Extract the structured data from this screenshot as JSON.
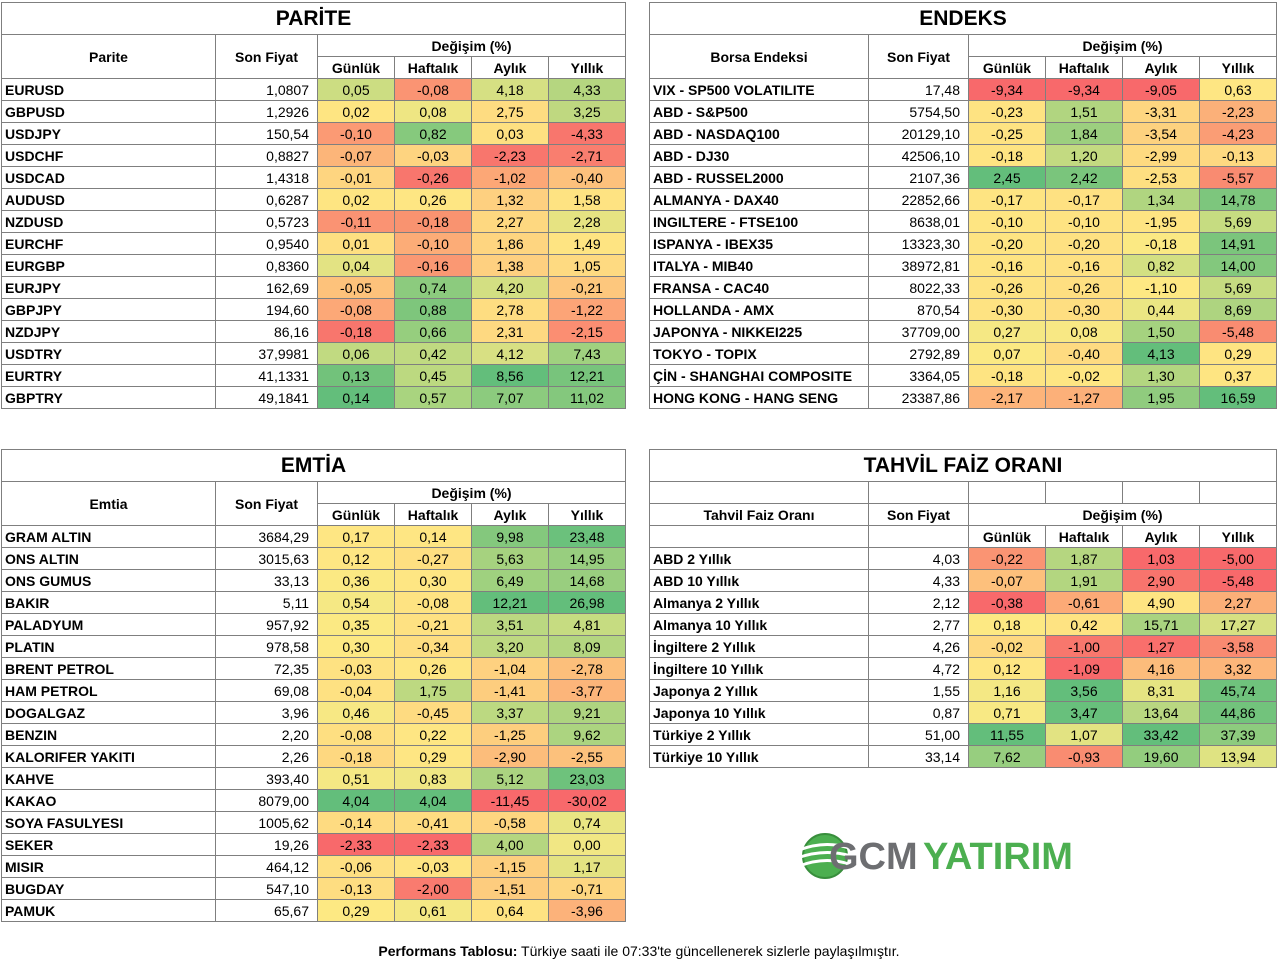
{
  "parite": {
    "title": "PARİTE",
    "col_name": "Parite",
    "col_price": "Son Fiyat",
    "col_change": "Değişim (%)",
    "sub": [
      "Günlük",
      "Haftalık",
      "Aylık",
      "Yıllık"
    ],
    "rows": [
      {
        "name": "EURUSD",
        "price": "1,0807",
        "d": "0,05",
        "w": "-0,08",
        "m": "4,18",
        "y": "4,33",
        "c": [
          "#ccdd82",
          "#fa9473",
          "#d6e083",
          "#b5d680"
        ]
      },
      {
        "name": "GBPUSD",
        "price": "1,2926",
        "d": "0,02",
        "w": "0,08",
        "m": "2,75",
        "y": "3,25",
        "c": [
          "#fee582",
          "#eee683",
          "#fedc81",
          "#bfd880"
        ]
      },
      {
        "name": "USDJPY",
        "price": "150,54",
        "d": "-0,10",
        "w": "0,82",
        "m": "0,03",
        "y": "-4,33",
        "c": [
          "#fb9a74",
          "#86c97d",
          "#fee081",
          "#f8766d"
        ]
      },
      {
        "name": "USDCHF",
        "price": "0,8827",
        "d": "-0,07",
        "w": "-0,03",
        "m": "-2,23",
        "y": "-2,71",
        "c": [
          "#fcb579",
          "#fed480",
          "#f8766d",
          "#f97e6f"
        ]
      },
      {
        "name": "USDCAD",
        "price": "1,4318",
        "d": "-0,01",
        "w": "-0,26",
        "m": "-1,02",
        "y": "-0,40",
        "c": [
          "#fed580",
          "#f8766d",
          "#fca776",
          "#fdc17c"
        ]
      },
      {
        "name": "AUDUSD",
        "price": "0,6287",
        "d": "0,02",
        "w": "0,26",
        "m": "1,32",
        "y": "1,58",
        "c": [
          "#fee582",
          "#fee683",
          "#fed080",
          "#fee382"
        ]
      },
      {
        "name": "NZDUSD",
        "price": "0,5723",
        "d": "-0,11",
        "w": "-0,18",
        "m": "2,27",
        "y": "2,28",
        "c": [
          "#fa9373",
          "#f99370",
          "#fed880",
          "#e6e382"
        ]
      },
      {
        "name": "EURCHF",
        "price": "0,9540",
        "d": "0,01",
        "w": "-0,10",
        "m": "1,86",
        "y": "1,49",
        "c": [
          "#fedf81",
          "#fcac77",
          "#fed580",
          "#fee482"
        ]
      },
      {
        "name": "EURGBP",
        "price": "0,8360",
        "d": "0,04",
        "w": "-0,16",
        "m": "1,38",
        "y": "1,05",
        "c": [
          "#e3e383",
          "#fa9873",
          "#fed080",
          "#feda81"
        ]
      },
      {
        "name": "EURJPY",
        "price": "162,69",
        "d": "-0,05",
        "w": "0,74",
        "m": "4,20",
        "y": "-0,21",
        "c": [
          "#fdc27b",
          "#8ccb7e",
          "#d3df82",
          "#fdc77d"
        ]
      },
      {
        "name": "GBPJPY",
        "price": "194,60",
        "d": "-0,08",
        "w": "0,88",
        "m": "2,78",
        "y": "-1,22",
        "c": [
          "#fca877",
          "#7ec67c",
          "#fedd81",
          "#fca477"
        ]
      },
      {
        "name": "NZDJPY",
        "price": "86,16",
        "d": "-0,18",
        "w": "0,66",
        "m": "2,31",
        "y": "-2,15",
        "c": [
          "#f8766d",
          "#96ce7e",
          "#fed981",
          "#fb8e72"
        ]
      },
      {
        "name": "USDTRY",
        "price": "37,9981",
        "d": "0,06",
        "w": "0,42",
        "m": "4,12",
        "y": "7,43",
        "c": [
          "#c1da81",
          "#c0da81",
          "#d8e083",
          "#a0d17f"
        ]
      },
      {
        "name": "EURTRY",
        "price": "41,1331",
        "d": "0,13",
        "w": "0,45",
        "m": "8,56",
        "y": "12,21",
        "c": [
          "#72c27b",
          "#bcd980",
          "#63be7b",
          "#78c47c"
        ]
      },
      {
        "name": "GBPTRY",
        "price": "49,1841",
        "d": "0,14",
        "w": "0,57",
        "m": "7,07",
        "y": "11,02",
        "c": [
          "#63be7b",
          "#a9d47f",
          "#8ccb7e",
          "#84c87d"
        ]
      }
    ]
  },
  "endeks": {
    "title": "ENDEKS",
    "col_name": "Borsa Endeksi",
    "col_price": "Son Fiyat",
    "col_change": "Değişim (%)",
    "sub": [
      "Günlük",
      "Haftalık",
      "Aylık",
      "Yıllık"
    ],
    "rows": [
      {
        "name": "VIX  - SP500 VOLATILITE",
        "price": "17,48",
        "d": "-9,34",
        "w": "-9,34",
        "m": "-9,05",
        "y": "0,63",
        "c": [
          "#f8696b",
          "#f8696b",
          "#f8696b",
          "#fee683"
        ]
      },
      {
        "name": "ABD - S&P500",
        "price": "5754,50",
        "d": "-0,23",
        "w": "1,51",
        "m": "-3,31",
        "y": "-2,23",
        "c": [
          "#fee382",
          "#b1d580",
          "#fed680",
          "#fbb079"
        ]
      },
      {
        "name": "ABD - NASDAQ100",
        "price": "20129,10",
        "d": "-0,25",
        "w": "1,84",
        "m": "-3,54",
        "y": "-4,23",
        "c": [
          "#fee382",
          "#9ccf7f",
          "#fdd27f",
          "#fa9d75"
        ]
      },
      {
        "name": "ABD - DJ30",
        "price": "42506,10",
        "d": "-0,18",
        "w": "1,20",
        "m": "-2,99",
        "y": "-0,13",
        "c": [
          "#fee482",
          "#c3da81",
          "#feda80",
          "#fed981"
        ]
      },
      {
        "name": "ABD - RUSSEL2000",
        "price": "2107,36",
        "d": "2,45",
        "w": "2,42",
        "m": "-2,53",
        "y": "-5,57",
        "c": [
          "#63be7b",
          "#7ac57c",
          "#fedf81",
          "#f98b71"
        ]
      },
      {
        "name": "ALMANYA - DAX40",
        "price": "22852,66",
        "d": "-0,17",
        "w": "-0,17",
        "m": "1,34",
        "y": "14,78",
        "c": [
          "#fee482",
          "#fee182",
          "#b0d580",
          "#7dc67d"
        ]
      },
      {
        "name": "INGILTERE - FTSE100",
        "price": "8638,01",
        "d": "-0,10",
        "w": "-0,10",
        "m": "-1,95",
        "y": "5,69",
        "c": [
          "#fee582",
          "#fee382",
          "#fee482",
          "#c6dc81"
        ]
      },
      {
        "name": "ISPANYA - IBEX35",
        "price": "13323,30",
        "d": "-0,20",
        "w": "-0,20",
        "m": "-0,18",
        "y": "14,91",
        "c": [
          "#fee482",
          "#fee182",
          "#fbe983",
          "#7bc57c"
        ]
      },
      {
        "name": "ITALYA - MIB40",
        "price": "38972,81",
        "d": "-0,16",
        "w": "-0,16",
        "m": "0,82",
        "y": "14,00",
        "c": [
          "#fee482",
          "#fee182",
          "#d3e082",
          "#83c87d"
        ]
      },
      {
        "name": "FRANSA - CAC40",
        "price": "8022,33",
        "d": "-0,26",
        "w": "-0,26",
        "m": "-1,10",
        "y": "5,69",
        "c": [
          "#fee382",
          "#fedf81",
          "#fee883",
          "#c6dc81"
        ]
      },
      {
        "name": "HOLLANDA - AMX",
        "price": "870,54",
        "d": "-0,30",
        "w": "-0,30",
        "m": "0,44",
        "y": "8,69",
        "c": [
          "#fee382",
          "#fede81",
          "#ebe683",
          "#aed480"
        ]
      },
      {
        "name": "JAPONYA - NIKKEI225",
        "price": "37709,00",
        "d": "0,27",
        "w": "0,08",
        "m": "1,50",
        "y": "-5,48",
        "c": [
          "#f5e884",
          "#f8e884",
          "#a5d27f",
          "#f98c71"
        ]
      },
      {
        "name": "TOKYO - TOPIX",
        "price": "2792,89",
        "d": "0,07",
        "w": "-0,40",
        "m": "4,13",
        "y": "0,29",
        "c": [
          "#fbe983",
          "#fedb81",
          "#63be7b",
          "#fee482"
        ]
      },
      {
        "name": "ÇİN - SHANGHAI COMPOSITE",
        "price": "3364,05",
        "d": "-0,18",
        "w": "-0,02",
        "m": "1,30",
        "y": "0,37",
        "c": [
          "#fee482",
          "#fee683",
          "#b3d680",
          "#fee582"
        ]
      },
      {
        "name": "HONG KONG - HANG SENG",
        "price": "23387,86",
        "d": "-2,17",
        "w": "-1,27",
        "m": "1,95",
        "y": "16,59",
        "c": [
          "#fdb47a",
          "#fcb079",
          "#90cb7e",
          "#63be7b"
        ]
      }
    ]
  },
  "emtia": {
    "title": "EMTİA",
    "col_name": "Emtia",
    "col_price": "Son Fiyat",
    "col_change": "Değişim (%)",
    "sub": [
      "Günlük",
      "Haftalık",
      "Aylık",
      "Yıllık"
    ],
    "rows": [
      {
        "name": "GRAM ALTIN",
        "price": "3684,29",
        "d": "0,17",
        "w": "0,14",
        "m": "9,98",
        "y": "23,48",
        "c": [
          "#fee683",
          "#fee683",
          "#84c87d",
          "#6bc17c"
        ]
      },
      {
        "name": "ONS ALTIN",
        "price": "3015,63",
        "d": "0,12",
        "w": "-0,27",
        "m": "5,63",
        "y": "14,95",
        "c": [
          "#fee683",
          "#fedf81",
          "#a6d27f",
          "#98ce7f"
        ]
      },
      {
        "name": "ONS GUMUS",
        "price": "33,13",
        "d": "0,36",
        "w": "0,30",
        "m": "6,49",
        "y": "14,68",
        "c": [
          "#fbe983",
          "#fee683",
          "#9fd17f",
          "#99ce7f"
        ]
      },
      {
        "name": "BAKIR",
        "price": "5,11",
        "d": "0,54",
        "w": "-0,08",
        "m": "12,21",
        "y": "26,98",
        "c": [
          "#f5e884",
          "#fee382",
          "#63be7b",
          "#63be7b"
        ]
      },
      {
        "name": "PALADYUM",
        "price": "957,92",
        "d": "0,35",
        "w": "-0,21",
        "m": "3,51",
        "y": "4,81",
        "c": [
          "#fbe983",
          "#fee182",
          "#bbd881",
          "#c6dc81"
        ]
      },
      {
        "name": "PLATIN",
        "price": "978,58",
        "d": "0,30",
        "w": "-0,34",
        "m": "3,20",
        "y": "8,09",
        "c": [
          "#fde983",
          "#fede81",
          "#bed981",
          "#b4d680"
        ]
      },
      {
        "name": "BRENT PETROL",
        "price": "72,35",
        "d": "-0,03",
        "w": "0,26",
        "m": "-1,04",
        "y": "-2,78",
        "c": [
          "#fee282",
          "#fee683",
          "#fed180",
          "#fcbf7b"
        ]
      },
      {
        "name": "HAM PETROL",
        "price": "69,08",
        "d": "-0,04",
        "w": "1,75",
        "m": "-1,41",
        "y": "-3,77",
        "c": [
          "#fee182",
          "#bdd981",
          "#fdcd7e",
          "#fcb57a"
        ]
      },
      {
        "name": "DOGALGAZ",
        "price": "3,96",
        "d": "0,46",
        "w": "-0,45",
        "m": "3,37",
        "y": "9,21",
        "c": [
          "#f7e884",
          "#fedb81",
          "#bcd981",
          "#aed480"
        ]
      },
      {
        "name": "BENZIN",
        "price": "2,20",
        "d": "-0,08",
        "w": "0,22",
        "m": "-1,25",
        "y": "9,62",
        "c": [
          "#fedf81",
          "#fee683",
          "#fdce7e",
          "#acd480"
        ]
      },
      {
        "name": "KALORIFER YAKITI",
        "price": "2,26",
        "d": "-0,18",
        "w": "0,29",
        "m": "-2,90",
        "y": "-2,55",
        "c": [
          "#fed880",
          "#fee683",
          "#fcbd7b",
          "#fcc17c"
        ]
      },
      {
        "name": "KAHVE",
        "price": "393,40",
        "d": "0,51",
        "w": "0,83",
        "m": "5,12",
        "y": "23,03",
        "c": [
          "#f5e884",
          "#f0e784",
          "#abd380",
          "#6ec27c"
        ]
      },
      {
        "name": "KAKAO",
        "price": "8079,00",
        "d": "4,04",
        "w": "4,04",
        "m": "-11,45",
        "y": "-30,02",
        "c": [
          "#63be7b",
          "#63be7b",
          "#f8696b",
          "#f8696b"
        ]
      },
      {
        "name": "SOYA FASULYESI",
        "price": "1005,62",
        "d": "-0,14",
        "w": "-0,41",
        "m": "-0,58",
        "y": "0,74",
        "c": [
          "#fedb81",
          "#fedc81",
          "#fed580",
          "#e9e583"
        ]
      },
      {
        "name": "SEKER",
        "price": "19,26",
        "d": "-2,33",
        "w": "-2,33",
        "m": "4,00",
        "y": "0,00",
        "c": [
          "#f8696b",
          "#f8696b",
          "#b5d680",
          "#f1e784"
        ]
      },
      {
        "name": "MISIR",
        "price": "464,12",
        "d": "-0,06",
        "w": "-0,03",
        "m": "-1,15",
        "y": "1,17",
        "c": [
          "#fee082",
          "#fee482",
          "#fdcf7e",
          "#e4e382"
        ]
      },
      {
        "name": "BUGDAY",
        "price": "547,10",
        "d": "-0,13",
        "w": "-2,00",
        "m": "-1,51",
        "y": "-0,71",
        "c": [
          "#fedd81",
          "#f97b6f",
          "#fdcc7e",
          "#fdd680"
        ]
      },
      {
        "name": "PAMUK",
        "price": "65,67",
        "d": "0,29",
        "w": "0,61",
        "m": "0,64",
        "y": "-3,96",
        "c": [
          "#fde983",
          "#f4e884",
          "#fee382",
          "#fcb27a"
        ]
      }
    ]
  },
  "tahvil": {
    "title": "TAHVİL FAİZ ORANI",
    "col_name": "Tahvil Faiz Oranı",
    "col_price": "Son Fiyat",
    "col_change": "Değişim (%)",
    "sub": [
      "Günlük",
      "Haftalık",
      "Aylık",
      "Yıllık"
    ],
    "rows": [
      {
        "name": "ABD 2 Yıllık",
        "price": "4,03",
        "d": "-0,22",
        "w": "1,87",
        "m": "1,03",
        "y": "-5,00",
        "c": [
          "#fa9473",
          "#b5d680",
          "#f8696b",
          "#f8696b"
        ]
      },
      {
        "name": "ABD 10 Yıllık",
        "price": "4,33",
        "d": "-0,07",
        "w": "1,91",
        "m": "2,90",
        "y": "-5,48",
        "c": [
          "#fdc07c",
          "#b3d680",
          "#f8746d",
          "#f8696b"
        ]
      },
      {
        "name": "Almanya 2 Yıllık",
        "price": "2,12",
        "d": "-0,38",
        "w": "-0,61",
        "m": "4,90",
        "y": "2,27",
        "c": [
          "#f8696b",
          "#fcaa77",
          "#fee482",
          "#fbaf78"
        ]
      },
      {
        "name": "Almanya 10 Yıllık",
        "price": "2,77",
        "d": "0,18",
        "w": "0,42",
        "m": "15,71",
        "y": "17,27",
        "c": [
          "#fde983",
          "#fee382",
          "#a9d380",
          "#d7e082"
        ]
      },
      {
        "name": "İngiltere 2 Yıllık",
        "price": "4,26",
        "d": "-0,02",
        "w": "-1,00",
        "m": "1,27",
        "y": "-3,58",
        "c": [
          "#fed981",
          "#f8776d",
          "#f96f6c",
          "#f98a71"
        ]
      },
      {
        "name": "İngiltere 10 Yıllık",
        "price": "4,72",
        "d": "0,12",
        "w": "-1,09",
        "m": "4,16",
        "y": "3,32",
        "c": [
          "#fee683",
          "#f8696b",
          "#fcbc7b",
          "#fcb67a"
        ]
      },
      {
        "name": "Japonya 2 Yıllık",
        "price": "1,55",
        "d": "1,16",
        "w": "3,56",
        "m": "8,31",
        "y": "45,74",
        "c": [
          "#f4e884",
          "#63be7b",
          "#e5e482",
          "#6fc27c"
        ]
      },
      {
        "name": "Japonya 10 Yıllık",
        "price": "0,87",
        "d": "0,71",
        "w": "3,47",
        "m": "13,64",
        "y": "44,86",
        "c": [
          "#f8e984",
          "#68c07c",
          "#b9d781",
          "#72c37c"
        ]
      },
      {
        "name": "Türkiye 2 Yıllık",
        "price": "51,00",
        "d": "11,55",
        "w": "1,07",
        "m": "33,42",
        "y": "37,39",
        "c": [
          "#63be7b",
          "#e2e382",
          "#63be7b",
          "#8dcb7e"
        ]
      },
      {
        "name": "Türkiye 10 Yıllık",
        "price": "33,14",
        "d": "7,62",
        "w": "-0,93",
        "m": "19,60",
        "y": "13,94",
        "c": [
          "#97ce7f",
          "#f98c71",
          "#93cd7e",
          "#dfe382"
        ]
      }
    ]
  },
  "logo": {
    "part1": "GCM",
    "part2": "YATIRIM",
    "color1": "#6d6e71",
    "color2": "#4caf50"
  },
  "footer": {
    "bold": "Performans Tablosu:",
    "text": " Türkiye saati ile 07:33'te güncellenerek sizlerle paylaşılmıştır."
  }
}
